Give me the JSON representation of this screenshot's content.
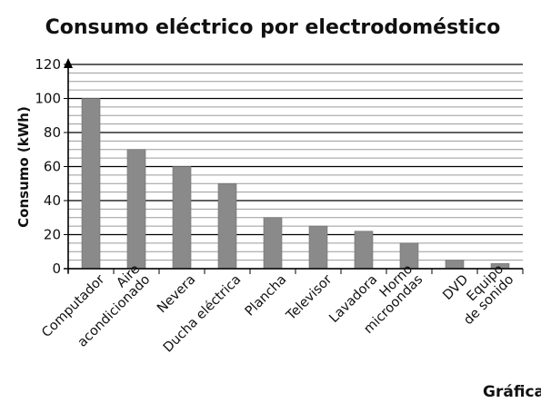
{
  "chart_data": {
    "type": "bar",
    "title": "Consumo eléctrico por electrodoméstico",
    "ylabel": "Consumo (kWh)",
    "xlabel": "",
    "ylim": [
      0,
      120
    ],
    "yticks": [
      "0",
      "20",
      "40",
      "60",
      "80",
      "100",
      "120"
    ],
    "grid": true,
    "categories": [
      [
        "Computador"
      ],
      [
        "Aire",
        "acondicionado"
      ],
      [
        "Nevera"
      ],
      [
        "Ducha eléctrica"
      ],
      [
        "Plancha"
      ],
      [
        "Televisor"
      ],
      [
        "Lavadora"
      ],
      [
        "Horno",
        "microondas"
      ],
      [
        "DVD"
      ],
      [
        "Equipo",
        "de sonido"
      ]
    ],
    "values": [
      100,
      70,
      60,
      50,
      30,
      25,
      22,
      15,
      5,
      3
    ]
  },
  "caption": "Gráfica",
  "colors": {
    "bar": "#8a8a8a",
    "bar_edge": "#6e6e6e",
    "major_grid": "#000000",
    "minor_grid": "#9a9a9a"
  }
}
